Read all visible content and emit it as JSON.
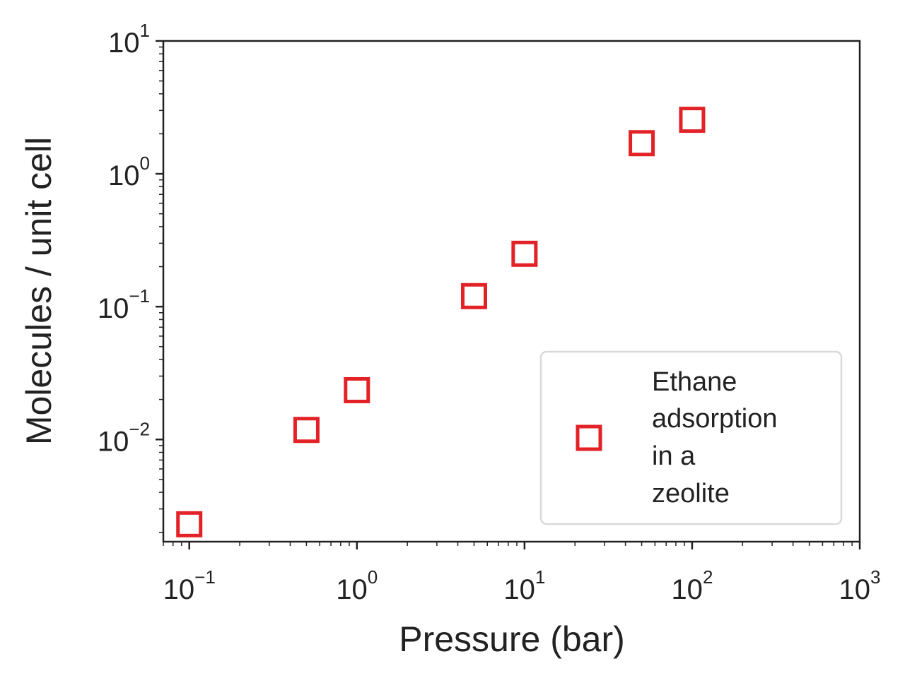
{
  "chart_data": {
    "type": "scatter",
    "xscale": "log",
    "yscale": "log",
    "xlim": [
      0.07,
      1000
    ],
    "ylim": [
      0.0017,
      10
    ],
    "xlabel": "Pressure (bar)",
    "ylabel": "Molecules / unit cell",
    "x_ticks": [
      {
        "base": "10",
        "exp": "−1",
        "value": 0.1
      },
      {
        "base": "10",
        "exp": "0",
        "value": 1
      },
      {
        "base": "10",
        "exp": "1",
        "value": 10
      },
      {
        "base": "10",
        "exp": "2",
        "value": 100
      },
      {
        "base": "10",
        "exp": "3",
        "value": 1000
      }
    ],
    "y_ticks": [
      {
        "base": "10",
        "exp": "−2",
        "value": 0.01
      },
      {
        "base": "10",
        "exp": "−1",
        "value": 0.1
      },
      {
        "base": "10",
        "exp": "0",
        "value": 1
      },
      {
        "base": "10",
        "exp": "1",
        "value": 10
      }
    ],
    "series": [
      {
        "name": "Ethane adsorption in a zeolite",
        "marker": "open-square",
        "color": "#e32227",
        "points": [
          {
            "x": 0.1,
            "y": 0.0023
          },
          {
            "x": 0.5,
            "y": 0.0118
          },
          {
            "x": 1,
            "y": 0.0235
          },
          {
            "x": 5,
            "y": 0.12
          },
          {
            "x": 10,
            "y": 0.25
          },
          {
            "x": 50,
            "y": 1.7
          },
          {
            "x": 100,
            "y": 2.55
          }
        ]
      }
    ],
    "legend": {
      "position": "lower-right",
      "lines": [
        "Ethane",
        "adsorption",
        "in a",
        "zeolite"
      ]
    },
    "grid": false
  }
}
